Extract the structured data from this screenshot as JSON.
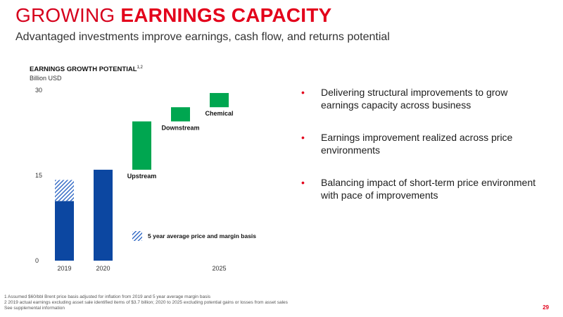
{
  "header": {
    "title_plain": "GROWING ",
    "title_accent": "EARNINGS CAPACITY",
    "subtitle": "Advantaged investments improve earnings, cash flow, and returns potential"
  },
  "chart_title": {
    "main": "EARNINGS GROWTH POTENTIAL",
    "superscript": "1,2",
    "unit": "Billion USD"
  },
  "chart_data": {
    "type": "bar",
    "title": "EARNINGS GROWTH POTENTIAL",
    "ylabel": "Billion USD",
    "ylim": [
      0,
      30
    ],
    "yticks": [
      0,
      15,
      30
    ],
    "grid": false,
    "categories": [
      "2019",
      "2020",
      "Upstream",
      "Downstream",
      "Chemical",
      "2025"
    ],
    "x_tick_labels": [
      "2019",
      "2020",
      "2025"
    ],
    "bars": [
      {
        "category": "2019",
        "kind": "total",
        "value": 10.5,
        "color": "#0c47a1"
      },
      {
        "category": "2019",
        "kind": "addition-hatched",
        "base": 10.5,
        "value": 3.7,
        "color": "#1e5bbf"
      },
      {
        "category": "2020",
        "kind": "total",
        "value": 16.0,
        "color": "#0c47a1"
      },
      {
        "category": "Upstream",
        "kind": "increase",
        "base": 16.0,
        "value": 8.5,
        "color": "#00a650"
      },
      {
        "category": "Downstream",
        "kind": "increase",
        "base": 24.5,
        "value": 2.5,
        "color": "#00a650"
      },
      {
        "category": "Chemical",
        "kind": "increase",
        "base": 27.0,
        "value": 2.5,
        "color": "#00a650"
      }
    ],
    "bar_labels": [
      "Upstream",
      "Downstream",
      "Chemical"
    ],
    "legend": {
      "label": "5 year average price and margin basis",
      "placement": "bottom-right"
    },
    "colors": {
      "base": "#0c47a1",
      "growth": "#00a650",
      "hatch": "#1e5bbf"
    }
  },
  "bullets": [
    "Delivering structural improvements to grow earnings capacity across business",
    "Earnings improvement realized across price environments",
    "Balancing impact of short-term price environment with pace of improvements"
  ],
  "footnotes": [
    "1 Assumed $60/bbl Brent price basis adjusted for inflation from 2019 and 5 year average margin basis",
    "2 2019 actual earnings excluding asset sale identified items of $3.7 billion; 2020 to 2025 excluding potential gains or losses from asset sales",
    "See supplemental information"
  ],
  "page_number": "29",
  "colors": {
    "accent": "#e3001b"
  }
}
